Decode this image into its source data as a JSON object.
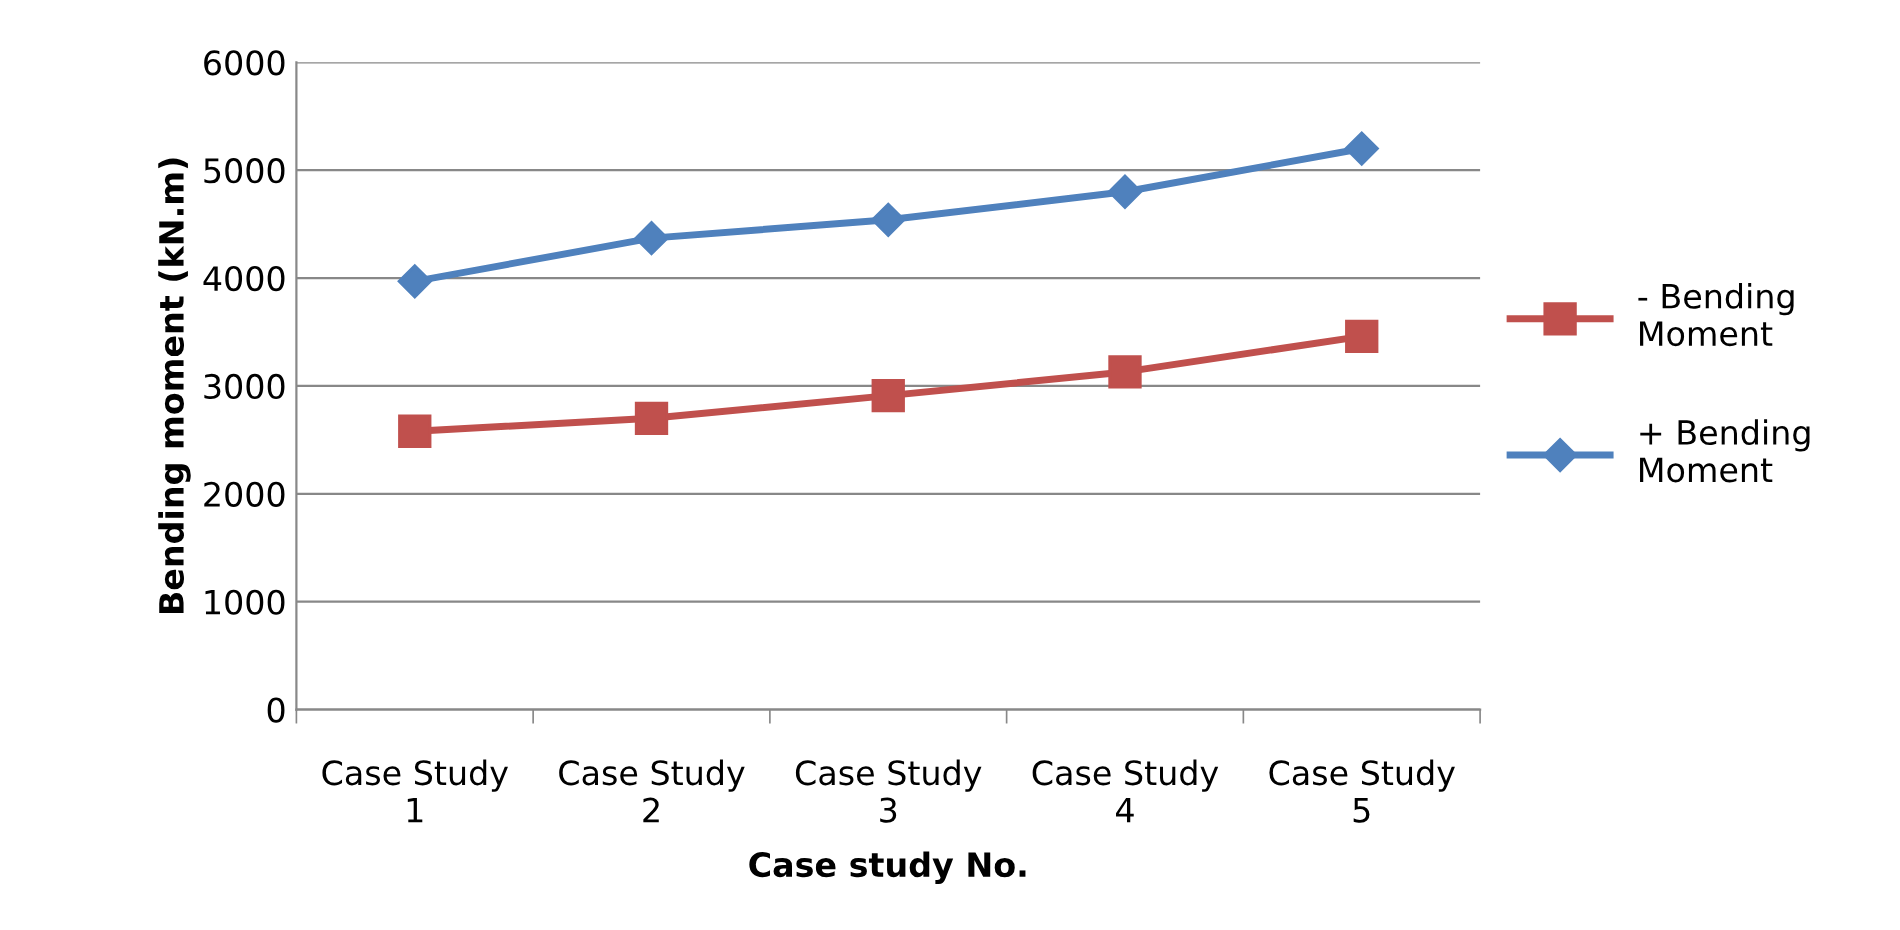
{
  "chart_data": {
    "type": "line",
    "xlabel": "Case study No.",
    "ylabel": "Bending moment (kN.m)",
    "categories": [
      "Case Study\n1",
      "Case Study\n2",
      "Case Study\n3",
      "Case Study\n4",
      "Case Study\n5"
    ],
    "series": [
      {
        "name": "- Bending\nMoment",
        "color": "#c0504d",
        "marker": "square",
        "values": [
          2580,
          2700,
          2910,
          3130,
          3460
        ]
      },
      {
        "name": "+ Bending\nMoment",
        "color": "#4f81bd",
        "marker": "diamond",
        "values": [
          3970,
          4370,
          4540,
          4800,
          5200
        ]
      }
    ],
    "ylim": [
      0,
      6000
    ],
    "yticks": [
      0,
      1000,
      2000,
      3000,
      4000,
      5000,
      6000
    ],
    "grid": "y",
    "legend": "right",
    "line_style": "solid"
  }
}
